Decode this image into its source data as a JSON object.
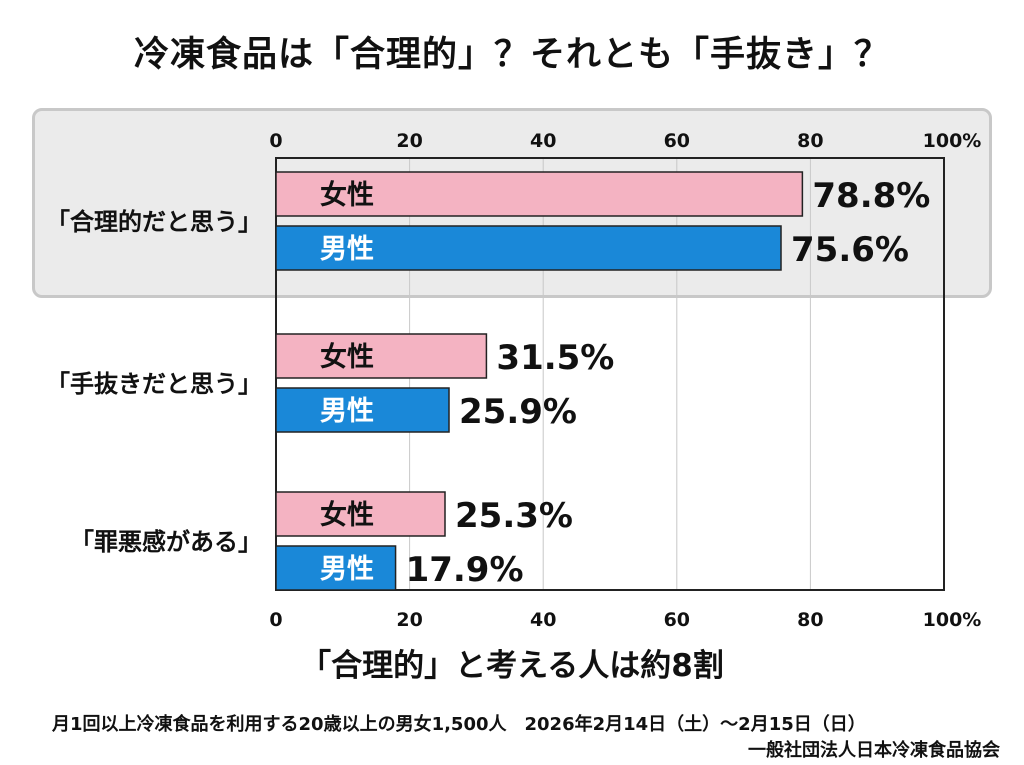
{
  "title": "冷凍食品は「合理的」？それとも「手抜き」？",
  "conclusion": "「合理的」と考える人は約8割",
  "survey_info": "月1回以上冷凍食品を利用する20歳以上の男女1,500人　2026年2月14日（土）～2月15日（日）",
  "source": "一般社団法人日本冷凍食品協会",
  "colors": {
    "female": "#f4b3c2",
    "male": "#1a88d8",
    "highlight_bg": "#ebebeb",
    "axis": "#222222",
    "grid": "#c8c8c8"
  },
  "chart_data": {
    "type": "bar",
    "orientation": "horizontal",
    "categories": [
      "「合理的だと思う」",
      "「手抜きだと思う」",
      "「罪悪感がある」"
    ],
    "series": [
      {
        "name": "女性",
        "values": [
          78.8,
          31.5,
          25.3
        ]
      },
      {
        "name": "男性",
        "values": [
          75.6,
          25.9,
          17.9
        ]
      }
    ],
    "value_labels": [
      [
        "78.8%",
        "31.5%",
        "25.3%"
      ],
      [
        "75.6%",
        "25.9%",
        "17.9%"
      ]
    ],
    "ticks": [
      "0",
      "20",
      "40",
      "60",
      "80",
      "100%"
    ],
    "xlim": [
      0,
      100
    ],
    "grid": true,
    "legend": "bar-labels"
  }
}
